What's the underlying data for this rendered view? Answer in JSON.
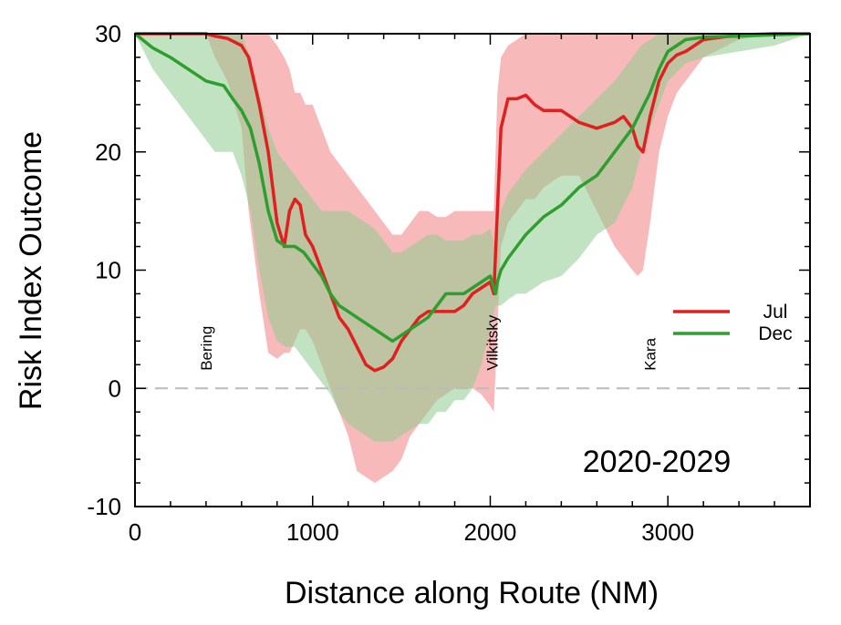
{
  "chart_data": {
    "type": "line",
    "title": "",
    "period_label": "2020-2029",
    "xlabel": "Distance along Route (NM)",
    "ylabel": "Risk Index Outcome",
    "xlim": [
      0,
      3800
    ],
    "ylim": [
      -10,
      30
    ],
    "x_ticks": [
      0,
      1000,
      2000,
      3000
    ],
    "y_ticks": [
      -10,
      0,
      10,
      20,
      30
    ],
    "x_tick_labels": [
      "0",
      "1000",
      "2000",
      "3000"
    ],
    "y_tick_labels": [
      "-10",
      "0",
      "10",
      "20",
      "30"
    ],
    "zero_line": 0,
    "grid": false,
    "legend_position": "right",
    "annotations": [
      {
        "text": "Bering",
        "x": 400,
        "y": 1.5,
        "rotation": -90
      },
      {
        "text": "Vilkitsky",
        "x": 2010,
        "y": 1.5,
        "rotation": -90
      },
      {
        "text": "Kara",
        "x": 2900,
        "y": 1.5,
        "rotation": -90
      }
    ],
    "series": [
      {
        "name": "Jul",
        "color": "#e01f1f",
        "band_color": "#f08080",
        "x": [
          0,
          300,
          400,
          450,
          520,
          600,
          640,
          700,
          750,
          800,
          840,
          870,
          900,
          930,
          960,
          1000,
          1050,
          1100,
          1150,
          1200,
          1250,
          1300,
          1350,
          1400,
          1450,
          1500,
          1550,
          1600,
          1650,
          1700,
          1750,
          1800,
          1850,
          1900,
          1950,
          2000,
          2020,
          2040,
          2060,
          2100,
          2150,
          2200,
          2250,
          2300,
          2400,
          2500,
          2600,
          2700,
          2750,
          2800,
          2830,
          2860,
          2900,
          2950,
          3000,
          3050,
          3100,
          3200,
          3400,
          3600,
          3800
        ],
        "y": [
          30,
          30,
          30,
          29.8,
          29.6,
          29.0,
          28.0,
          24.0,
          20.0,
          14.0,
          12.0,
          15.0,
          16.0,
          15.5,
          13.0,
          12.0,
          10.0,
          8.0,
          6.0,
          5.0,
          3.5,
          2.0,
          1.5,
          1.8,
          2.5,
          4.0,
          5.0,
          6.0,
          6.5,
          6.5,
          6.5,
          6.5,
          7.0,
          8.0,
          8.5,
          9.0,
          8.0,
          15.0,
          22.0,
          24.5,
          24.5,
          24.8,
          24.0,
          23.5,
          23.5,
          22.5,
          22.0,
          22.5,
          23.0,
          22.0,
          20.5,
          20.0,
          23.0,
          26.0,
          27.5,
          28.2,
          28.5,
          29.5,
          29.9,
          30,
          30
        ],
        "lower": [
          30,
          30,
          30,
          28,
          26,
          22,
          15,
          8,
          3,
          2.5,
          3,
          3,
          4,
          5,
          5,
          4,
          2,
          0,
          -2,
          -4,
          -7,
          -7.5,
          -8,
          -7.5,
          -7,
          -6,
          -4,
          -3,
          -2,
          -1,
          -0.5,
          0,
          0,
          0,
          -0.5,
          -1.5,
          -2,
          5,
          12,
          14,
          15,
          16,
          16,
          17,
          18,
          18,
          15,
          12,
          11,
          10,
          9.5,
          10,
          14,
          20,
          23,
          25,
          26,
          28,
          29.5,
          30,
          30
        ],
        "upper": [
          30,
          30,
          30,
          30,
          30,
          30,
          30,
          30,
          30,
          29,
          28,
          27,
          25,
          25,
          24,
          24,
          22,
          20,
          19,
          18,
          17,
          16,
          15,
          14,
          13,
          13,
          14,
          15,
          15,
          14.5,
          14.5,
          15,
          15,
          15,
          15,
          15,
          15,
          25,
          28,
          29,
          29.5,
          30,
          30,
          30,
          30,
          30,
          30,
          30,
          30,
          30,
          30,
          30,
          30,
          30,
          30,
          30,
          30,
          30,
          30,
          30,
          30
        ]
      },
      {
        "name": "Dec",
        "color": "#2e9e2e",
        "band_color": "#90cc90",
        "x": [
          0,
          100,
          200,
          300,
          400,
          450,
          500,
          550,
          600,
          650,
          700,
          750,
          800,
          850,
          900,
          950,
          1000,
          1050,
          1100,
          1150,
          1200,
          1250,
          1300,
          1350,
          1400,
          1450,
          1500,
          1550,
          1600,
          1650,
          1700,
          1750,
          1800,
          1850,
          1900,
          1950,
          2000,
          2030,
          2040,
          2060,
          2100,
          2150,
          2200,
          2300,
          2400,
          2500,
          2600,
          2700,
          2800,
          2850,
          2900,
          2950,
          3000,
          3100,
          3200,
          3400,
          3600,
          3800
        ],
        "y": [
          30,
          28.8,
          28.0,
          27.0,
          26.0,
          25.8,
          25.6,
          24.5,
          23.5,
          22.0,
          19.0,
          15.0,
          12.5,
          12.0,
          12.0,
          11.5,
          10.5,
          9.5,
          8.0,
          7.0,
          6.5,
          6.0,
          5.5,
          5.0,
          4.5,
          4.0,
          4.5,
          5.0,
          5.5,
          6.0,
          7.0,
          8.0,
          8.0,
          8.0,
          8.5,
          9.0,
          9.5,
          8.0,
          9.0,
          10.0,
          11.0,
          12.0,
          13.0,
          14.5,
          15.5,
          17.0,
          18.0,
          20.0,
          22.0,
          23.5,
          25.0,
          27.0,
          28.5,
          29.5,
          29.7,
          29.8,
          29.9,
          30
        ],
        "lower": [
          30,
          27,
          25,
          23,
          21,
          20,
          20,
          20,
          18,
          15,
          10,
          6,
          4,
          3.5,
          3.5,
          2.5,
          1.5,
          0.5,
          -0.5,
          -2,
          -3,
          -3.5,
          -4,
          -4.5,
          -4.5,
          -4.5,
          -4,
          -3.5,
          -3,
          -3,
          -2,
          -2,
          -1,
          -1,
          0,
          2,
          5,
          7,
          7,
          7,
          7.5,
          8,
          8,
          9,
          9.5,
          11,
          13,
          14,
          17,
          20,
          22,
          24,
          26,
          27.5,
          28,
          28.5,
          29,
          30
        ],
        "upper": [
          30,
          30,
          30,
          30,
          30,
          30,
          30,
          30,
          30,
          28,
          25,
          22,
          20,
          19,
          18,
          17,
          16,
          15,
          15,
          15,
          15,
          14.5,
          14,
          13.5,
          12.5,
          11.5,
          11.5,
          12,
          12.5,
          13,
          13,
          12.5,
          12.5,
          12.5,
          13,
          13,
          13.5,
          12,
          13,
          15,
          16.5,
          17.5,
          18.5,
          20,
          21.5,
          23,
          24.5,
          26,
          28,
          29,
          29.5,
          30,
          30,
          30,
          30,
          30,
          30,
          30
        ]
      }
    ]
  }
}
